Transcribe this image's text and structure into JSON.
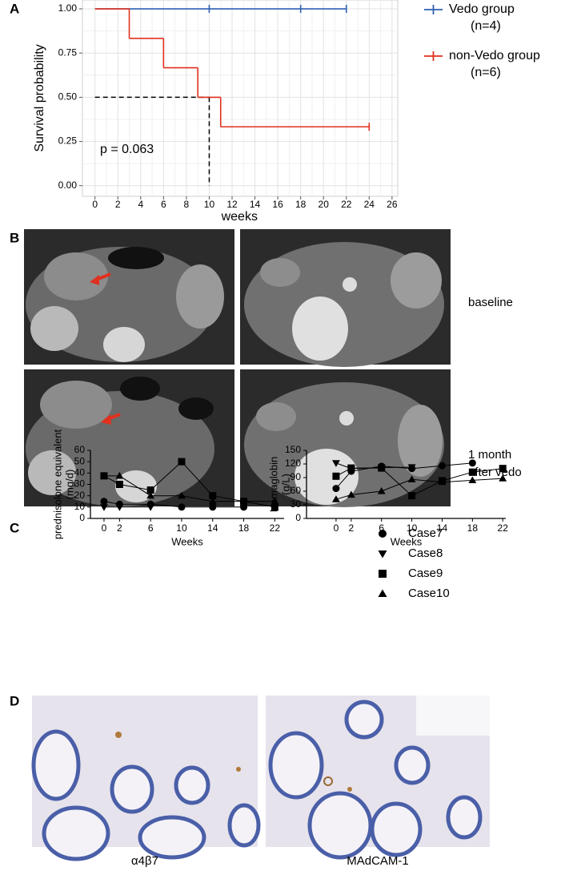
{
  "panel_labels": [
    "A",
    "B",
    "C",
    "D"
  ],
  "chart_data": [
    {
      "type": "step",
      "ylabel": "Survival probability",
      "xlabel": "weeks",
      "xlim": [
        -1.1,
        26.5
      ],
      "ylim": [
        -0.06,
        1.05
      ],
      "xticks": [
        0,
        2,
        4,
        6,
        8,
        10,
        12,
        14,
        16,
        18,
        20,
        22,
        24,
        26
      ],
      "yticks": [
        {
          "value": 0,
          "label": "0.00"
        },
        {
          "value": 0.25,
          "label": "0.25"
        },
        {
          "value": 0.5,
          "label": "0.50"
        },
        {
          "value": 0.75,
          "label": "0.75"
        },
        {
          "value": 1,
          "label": "1.00"
        }
      ],
      "grid": true,
      "series": [
        {
          "name": "Vedo group",
          "n_label": "(n=4)",
          "color": "#2f5fb3",
          "x": [
            0,
            22
          ],
          "values": [
            1,
            1
          ],
          "censor_x": [
            10,
            18,
            22
          ],
          "censor_values": [
            1,
            1,
            1
          ]
        },
        {
          "name": "non-Vedo group",
          "n_label": "(n=6)",
          "color": "#e0301e",
          "x": [
            0,
            3,
            6,
            9,
            11,
            24
          ],
          "values": [
            1,
            0.833,
            0.667,
            0.5,
            0.333,
            0.333
          ],
          "censor_x": [
            24
          ],
          "censor_values": [
            0.333
          ]
        }
      ],
      "median_line": {
        "x": 10,
        "y": 0.5
      },
      "annotation": "p = 0.063"
    },
    {
      "type": "line",
      "ylabel": [
        "prednisolone equivalent",
        "(mg/d)"
      ],
      "xlabel": "Weeks",
      "x": [
        0,
        2,
        6,
        10,
        14,
        18,
        22
      ],
      "xlim": [
        -1.75,
        23.2
      ],
      "ylim": [
        0,
        60
      ],
      "xticks": [
        0,
        2,
        6,
        10,
        14,
        18,
        22
      ],
      "yticks": [
        0,
        10,
        20,
        30,
        40,
        50,
        60
      ],
      "series": [
        {
          "marker": "circle",
          "color": "#000000",
          "values": [
            15,
            12.5,
            12.5,
            10,
            10,
            10,
            null
          ]
        },
        {
          "marker": "triangle-down",
          "color": "#000000",
          "values": [
            10,
            10,
            10,
            null,
            null,
            null,
            null
          ]
        },
        {
          "marker": "square",
          "color": "#000000",
          "values": [
            37.5,
            30,
            25,
            50,
            20,
            15,
            10
          ]
        },
        {
          "marker": "triangle-up",
          "color": "#000000",
          "values": [
            37.5,
            37.5,
            20,
            20,
            15,
            15,
            15
          ]
        }
      ]
    },
    {
      "type": "line",
      "ylabel": [
        "Hemaglobin",
        "(g/L)"
      ],
      "xlabel": "Weeks",
      "x": [
        0,
        2,
        6,
        10,
        14,
        18,
        22
      ],
      "xlim": [
        -3.9,
        22.4
      ],
      "ylim": [
        0,
        150
      ],
      "xticks": [
        0,
        2,
        6,
        10,
        14,
        18,
        22
      ],
      "yticks": [
        0,
        30,
        60,
        90,
        120,
        150
      ],
      "series": [
        {
          "name": "Case7",
          "marker": "circle",
          "color": "#000000",
          "values": [
            66,
            104,
            115,
            110,
            116,
            122,
            null
          ]
        },
        {
          "name": "Case8",
          "marker": "triangle-down",
          "color": "#000000",
          "values": [
            122,
            110,
            112,
            113,
            null,
            null,
            null
          ]
        },
        {
          "name": "Case9",
          "marker": "square",
          "color": "#000000",
          "values": [
            93,
            111,
            111,
            50,
            83,
            102,
            110
          ]
        },
        {
          "name": "Case10",
          "marker": "triangle-up",
          "color": "#000000",
          "values": [
            42,
            52,
            60,
            86,
            80,
            84,
            88
          ]
        }
      ]
    }
  ],
  "ct_labels": [
    [
      "baseline"
    ],
    [
      "1 month",
      "after vedo"
    ]
  ],
  "ihc_labels": [
    "α4β7",
    "MAdCAM-1"
  ]
}
